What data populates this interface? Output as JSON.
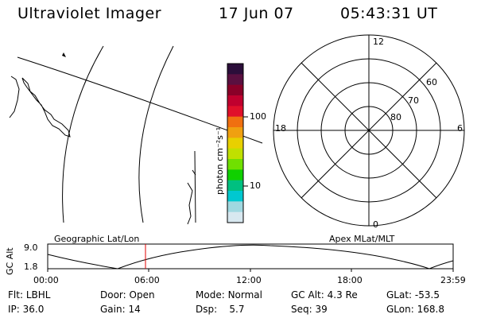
{
  "header": {
    "instrument": "Ultraviolet Imager",
    "date": "17 Jun 07",
    "time": "05:43:31 UT"
  },
  "colorbar": {
    "unit_label": "photon cm⁻²s⁻¹",
    "ticks": [
      "100",
      "10"
    ],
    "colors": [
      "#2b0e3a",
      "#5a1040",
      "#8a0028",
      "#c0002e",
      "#e0102a",
      "#f07010",
      "#f0a010",
      "#e8d000",
      "#c0e000",
      "#70e000",
      "#10d000",
      "#00c080",
      "#00c8d0",
      "#a0d8e0",
      "#d8e8f0"
    ]
  },
  "polar": {
    "mlt_labels": {
      "top": "12",
      "left": "18",
      "right": "6",
      "bottom": "0"
    },
    "lat_labels": [
      "60",
      "70",
      "80"
    ]
  },
  "strip": {
    "ylabel": "GC Alt",
    "ytick_top": "9.0",
    "ytick_bottom": "1.8",
    "left_title": "Geographic Lat/Lon",
    "right_title": "Apex MLat/MLT",
    "xticks": [
      "00:00",
      "06:00",
      "12:00",
      "18:00",
      "23:59"
    ]
  },
  "info": {
    "row1": [
      {
        "label": "Flt:",
        "value": "LBHL"
      },
      {
        "label": "Door:",
        "value": "Open"
      },
      {
        "label": "Mode:",
        "value": "Normal"
      },
      {
        "label": "GC Alt:",
        "value": "4.3 Re"
      },
      {
        "label": "GLat:",
        "value": "-53.5"
      }
    ],
    "row2": [
      {
        "label": "IP:",
        "value": "36.0"
      },
      {
        "label": "Gain:",
        "value": "14"
      },
      {
        "label": "Dsp:",
        "value": "5.7"
      },
      {
        "label": "Seq:",
        "value": "39"
      },
      {
        "label": "GLon:",
        "value": "168.8"
      }
    ]
  }
}
